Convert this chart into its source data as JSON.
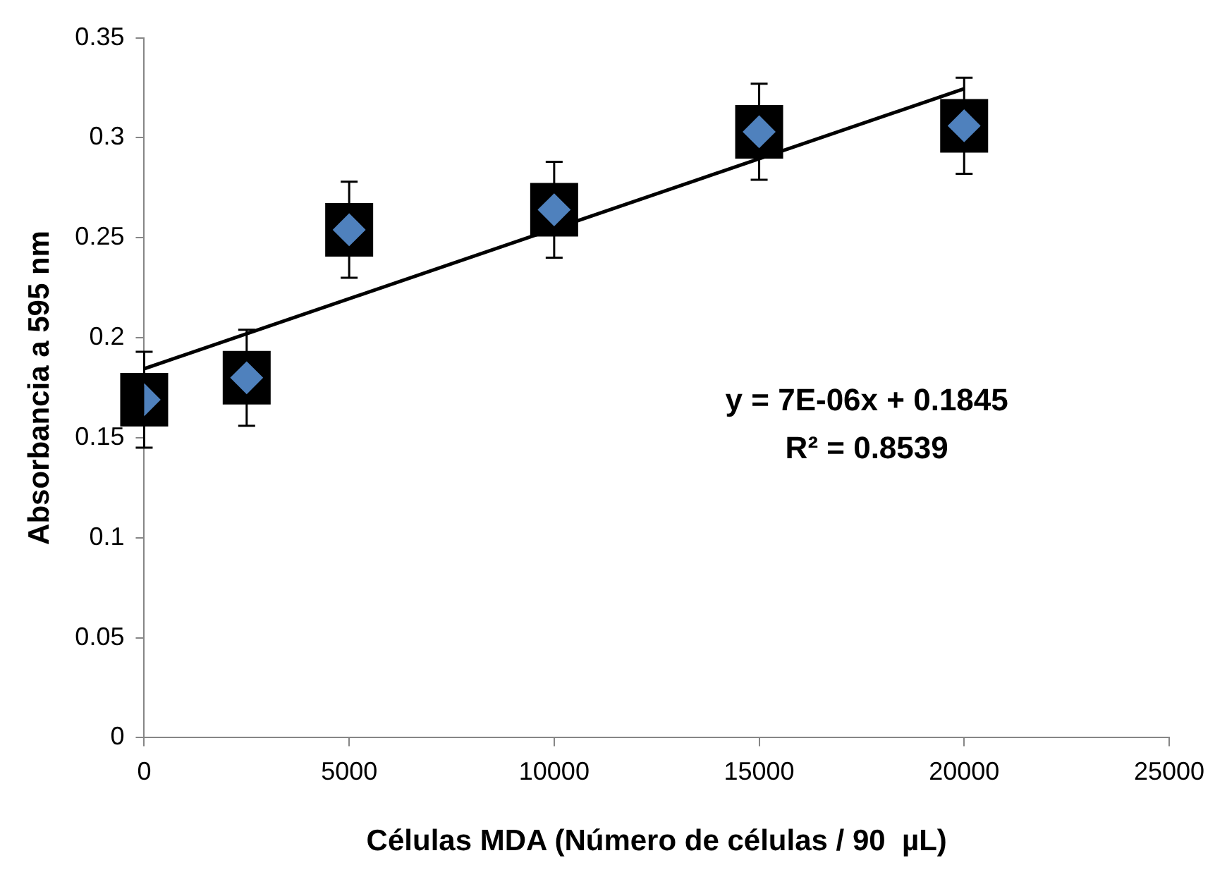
{
  "chart_data": {
    "type": "scatter",
    "xlabel": "Células MDA (Número de células / 90  µL)",
    "ylabel": "Absorbancia a 595 nm",
    "xlim": [
      0,
      25000
    ],
    "xticks": [
      0,
      5000,
      10000,
      15000,
      20000,
      25000
    ],
    "ylim": [
      0,
      0.35
    ],
    "yticks": [
      0,
      0.05,
      0.1,
      0.15,
      0.2,
      0.25,
      0.3,
      0.35
    ],
    "grid": false,
    "legend": false,
    "annotations": [
      "y = 7E-06x + 0.1845",
      "R² = 0.8539"
    ],
    "series": [
      {
        "type": "scatter",
        "marker": "diamond",
        "color": "#4f81bd",
        "x": [
          0,
          2500,
          5000,
          10000,
          15000,
          20000
        ],
        "values": [
          0.169,
          0.18,
          0.254,
          0.264,
          0.303,
          0.306
        ],
        "errors": [
          0.024,
          0.024,
          0.024,
          0.024,
          0.024,
          0.024
        ]
      },
      {
        "type": "line",
        "color": "#000000",
        "x": [
          0,
          20000
        ],
        "values": [
          0.1845,
          0.3245
        ]
      }
    ]
  }
}
